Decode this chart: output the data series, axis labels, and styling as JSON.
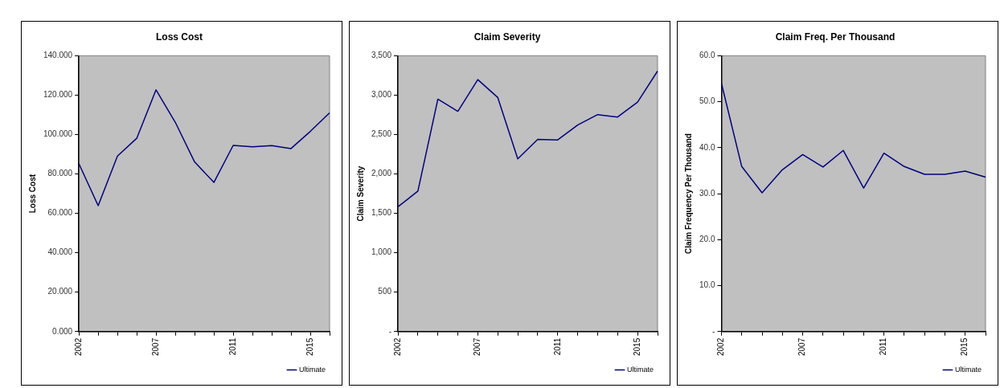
{
  "chart_data": [
    {
      "type": "line",
      "title": "Loss Cost",
      "ylabel": "Loss Cost",
      "categories": [
        "2002",
        null,
        null,
        null,
        "2007",
        null,
        null,
        null,
        "2011",
        null,
        null,
        null,
        "2015",
        null
      ],
      "series": [
        {
          "name": "Ultimate",
          "color": "#000080",
          "values": [
            85.2,
            63.9,
            89.1,
            98.1,
            122.7,
            106.2,
            86.1,
            75.7,
            94.5,
            93.8,
            94.4,
            92.9,
            101.6,
            111.0
          ]
        }
      ],
      "ylim": [
        0,
        140
      ],
      "yticks": [
        {
          "value": 0,
          "label": "0.000"
        },
        {
          "value": 20,
          "label": "20.000"
        },
        {
          "value": 40,
          "label": "40.000"
        },
        {
          "value": 60,
          "label": "60.000"
        },
        {
          "value": 80,
          "label": "80.000"
        },
        {
          "value": 100,
          "label": "100.000"
        },
        {
          "value": 120,
          "label": "120.000"
        },
        {
          "value": 140,
          "label": "140.000"
        }
      ],
      "grid": false,
      "legend": "bottom right",
      "marker": "none",
      "line_style": "solid"
    },
    {
      "type": "line",
      "title": "Claim Severity",
      "ylabel": "Claim Severity",
      "categories": [
        "2002",
        null,
        null,
        null,
        "2007",
        null,
        null,
        null,
        "2011",
        null,
        null,
        null,
        "2015",
        null
      ],
      "series": [
        {
          "name": "Ultimate",
          "color": "#000080",
          "values": [
            1583,
            1782,
            2949,
            2795,
            3197,
            2970,
            2191,
            2439,
            2432,
            2621,
            2753,
            2722,
            2911,
            3305
          ]
        }
      ],
      "ylim": [
        0,
        3500
      ],
      "yticks": [
        {
          "value": 0,
          "label": "-"
        },
        {
          "value": 500,
          "label": "500"
        },
        {
          "value": 1000,
          "label": "1,000"
        },
        {
          "value": 1500,
          "label": "1,500"
        },
        {
          "value": 2000,
          "label": "2,000"
        },
        {
          "value": 2500,
          "label": "2,500"
        },
        {
          "value": 3000,
          "label": "3,000"
        },
        {
          "value": 3500,
          "label": "3,500"
        }
      ],
      "grid": false,
      "legend": "bottom right",
      "marker": "none",
      "line_style": "solid"
    },
    {
      "type": "line",
      "title": "Claim Freq. Per Thousand",
      "ylabel": "Claim Frequency Per Thousand",
      "categories": [
        "2002",
        null,
        null,
        null,
        "2007",
        null,
        null,
        null,
        "2011",
        null,
        null,
        null,
        "2015",
        null
      ],
      "series": [
        {
          "name": "Ultimate",
          "color": "#000080",
          "values": [
            54.0,
            35.9,
            30.2,
            35.2,
            38.5,
            35.8,
            39.4,
            31.2,
            38.8,
            35.9,
            34.2,
            34.2,
            34.9,
            33.6
          ]
        }
      ],
      "ylim": [
        0,
        60
      ],
      "yticks": [
        {
          "value": 0,
          "label": "-"
        },
        {
          "value": 10,
          "label": "10.0"
        },
        {
          "value": 20,
          "label": "20.0"
        },
        {
          "value": 30,
          "label": "30.0"
        },
        {
          "value": 40,
          "label": "40.0"
        },
        {
          "value": 50,
          "label": "50.0"
        },
        {
          "value": 60,
          "label": "60.0"
        }
      ],
      "grid": false,
      "legend": "bottom right",
      "marker": "none",
      "line_style": "solid"
    }
  ]
}
